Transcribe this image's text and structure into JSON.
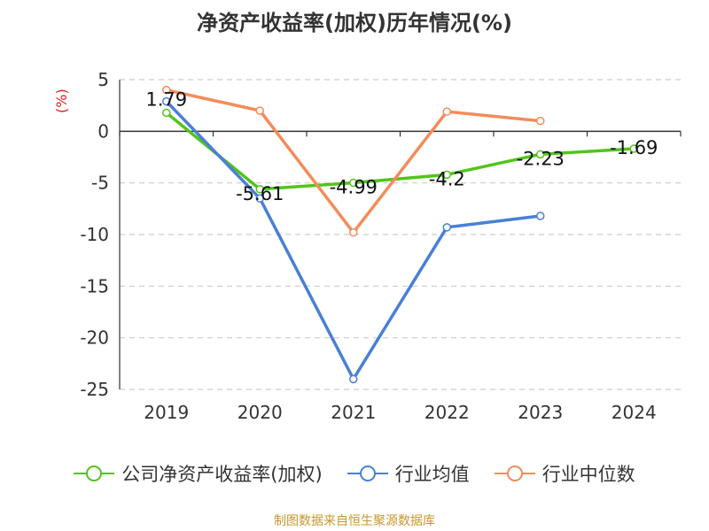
{
  "chart_data": {
    "type": "line",
    "title": "净资产收益率(加权)历年情况(%)",
    "ylabel": "(%)",
    "xlabel": "",
    "categories": [
      "2019",
      "2020",
      "2021",
      "2022",
      "2023",
      "2024"
    ],
    "ylim": [
      -25,
      5
    ],
    "yticks": [
      5,
      0,
      -5,
      -10,
      -15,
      -20,
      -25
    ],
    "grid": true,
    "legend_position": "bottom",
    "series": [
      {
        "name": "公司净资产收益率(加权)",
        "color": "#52c41a",
        "values": [
          1.79,
          -5.61,
          -4.99,
          -4.2,
          -2.23,
          -1.69
        ],
        "labels": [
          "1.79",
          "-5.61",
          "-4.99",
          "-4.2",
          "-2.23",
          "-1.69"
        ]
      },
      {
        "name": "行业均值",
        "color": "#4a7fd6",
        "values": [
          2.9,
          -6.5,
          -24.0,
          -9.3,
          -8.2,
          null
        ]
      },
      {
        "name": "行业中位数",
        "color": "#f28c5a",
        "values": [
          4.0,
          2.0,
          -9.8,
          1.9,
          1.0,
          null
        ]
      }
    ]
  },
  "footer": "制图数据来自恒生聚源数据库"
}
